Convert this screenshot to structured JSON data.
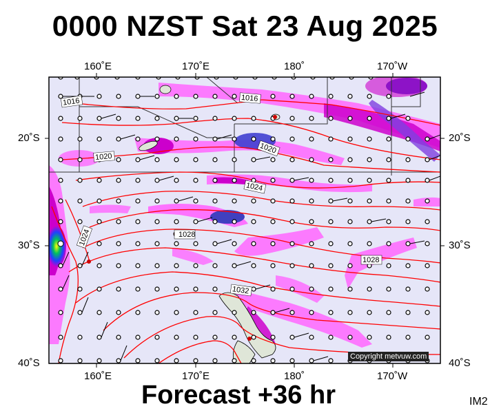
{
  "title": "0000 NZST Sat 23 Aug 2025",
  "footer": "Forecast +36 hr",
  "corner_tag": "IM2",
  "copyright": "Copyright metvuw.com",
  "lon_labels": [
    "160˚E",
    "170˚E",
    "180˚",
    "170˚W"
  ],
  "lat_labels": [
    "20˚S",
    "30˚S",
    "40˚S"
  ],
  "isobar_labels": [
    "1016",
    "1016",
    "1020",
    "1020",
    "1024",
    "1024",
    "1028",
    "1028",
    "1032"
  ],
  "colors": {
    "map_bg": "#e6e6f8",
    "isobar": "#ff0000",
    "precip_light": "#ff66ff",
    "precip_mid": "#cc00cc",
    "precip_heavy": "#3030c0",
    "land": "#dfe6d8",
    "wind_barb": "#000000"
  }
}
